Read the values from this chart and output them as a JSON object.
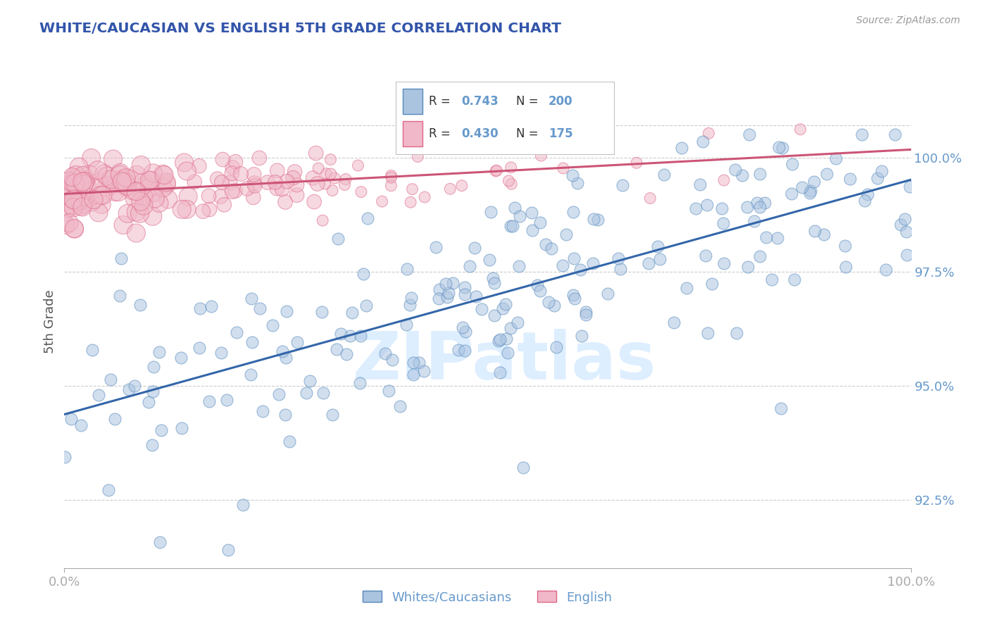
{
  "title": "WHITE/CAUCASIAN VS ENGLISH 5TH GRADE CORRELATION CHART",
  "source": "Source: ZipAtlas.com",
  "ylabel": "5th Grade",
  "legend_blue_r": "0.743",
  "legend_blue_n": "200",
  "legend_pink_r": "0.430",
  "legend_pink_n": "175",
  "blue_color": "#aac4e0",
  "pink_color": "#f0b8c8",
  "blue_edge_color": "#5588bb",
  "pink_edge_color": "#dd6688",
  "blue_line_color": "#3366aa",
  "pink_line_color": "#cc5577",
  "axis_color": "#6699cc",
  "title_color": "#3355aa",
  "watermark_color": "#ddeeff",
  "background_color": "#ffffff",
  "grid_color": "#cccccc",
  "ymin": 91.0,
  "ymax": 101.8,
  "xmin": 0.0,
  "xmax": 100.0,
  "yticks": [
    92.5,
    95.0,
    97.5,
    100.0
  ],
  "n_blue": 200,
  "n_pink": 175
}
